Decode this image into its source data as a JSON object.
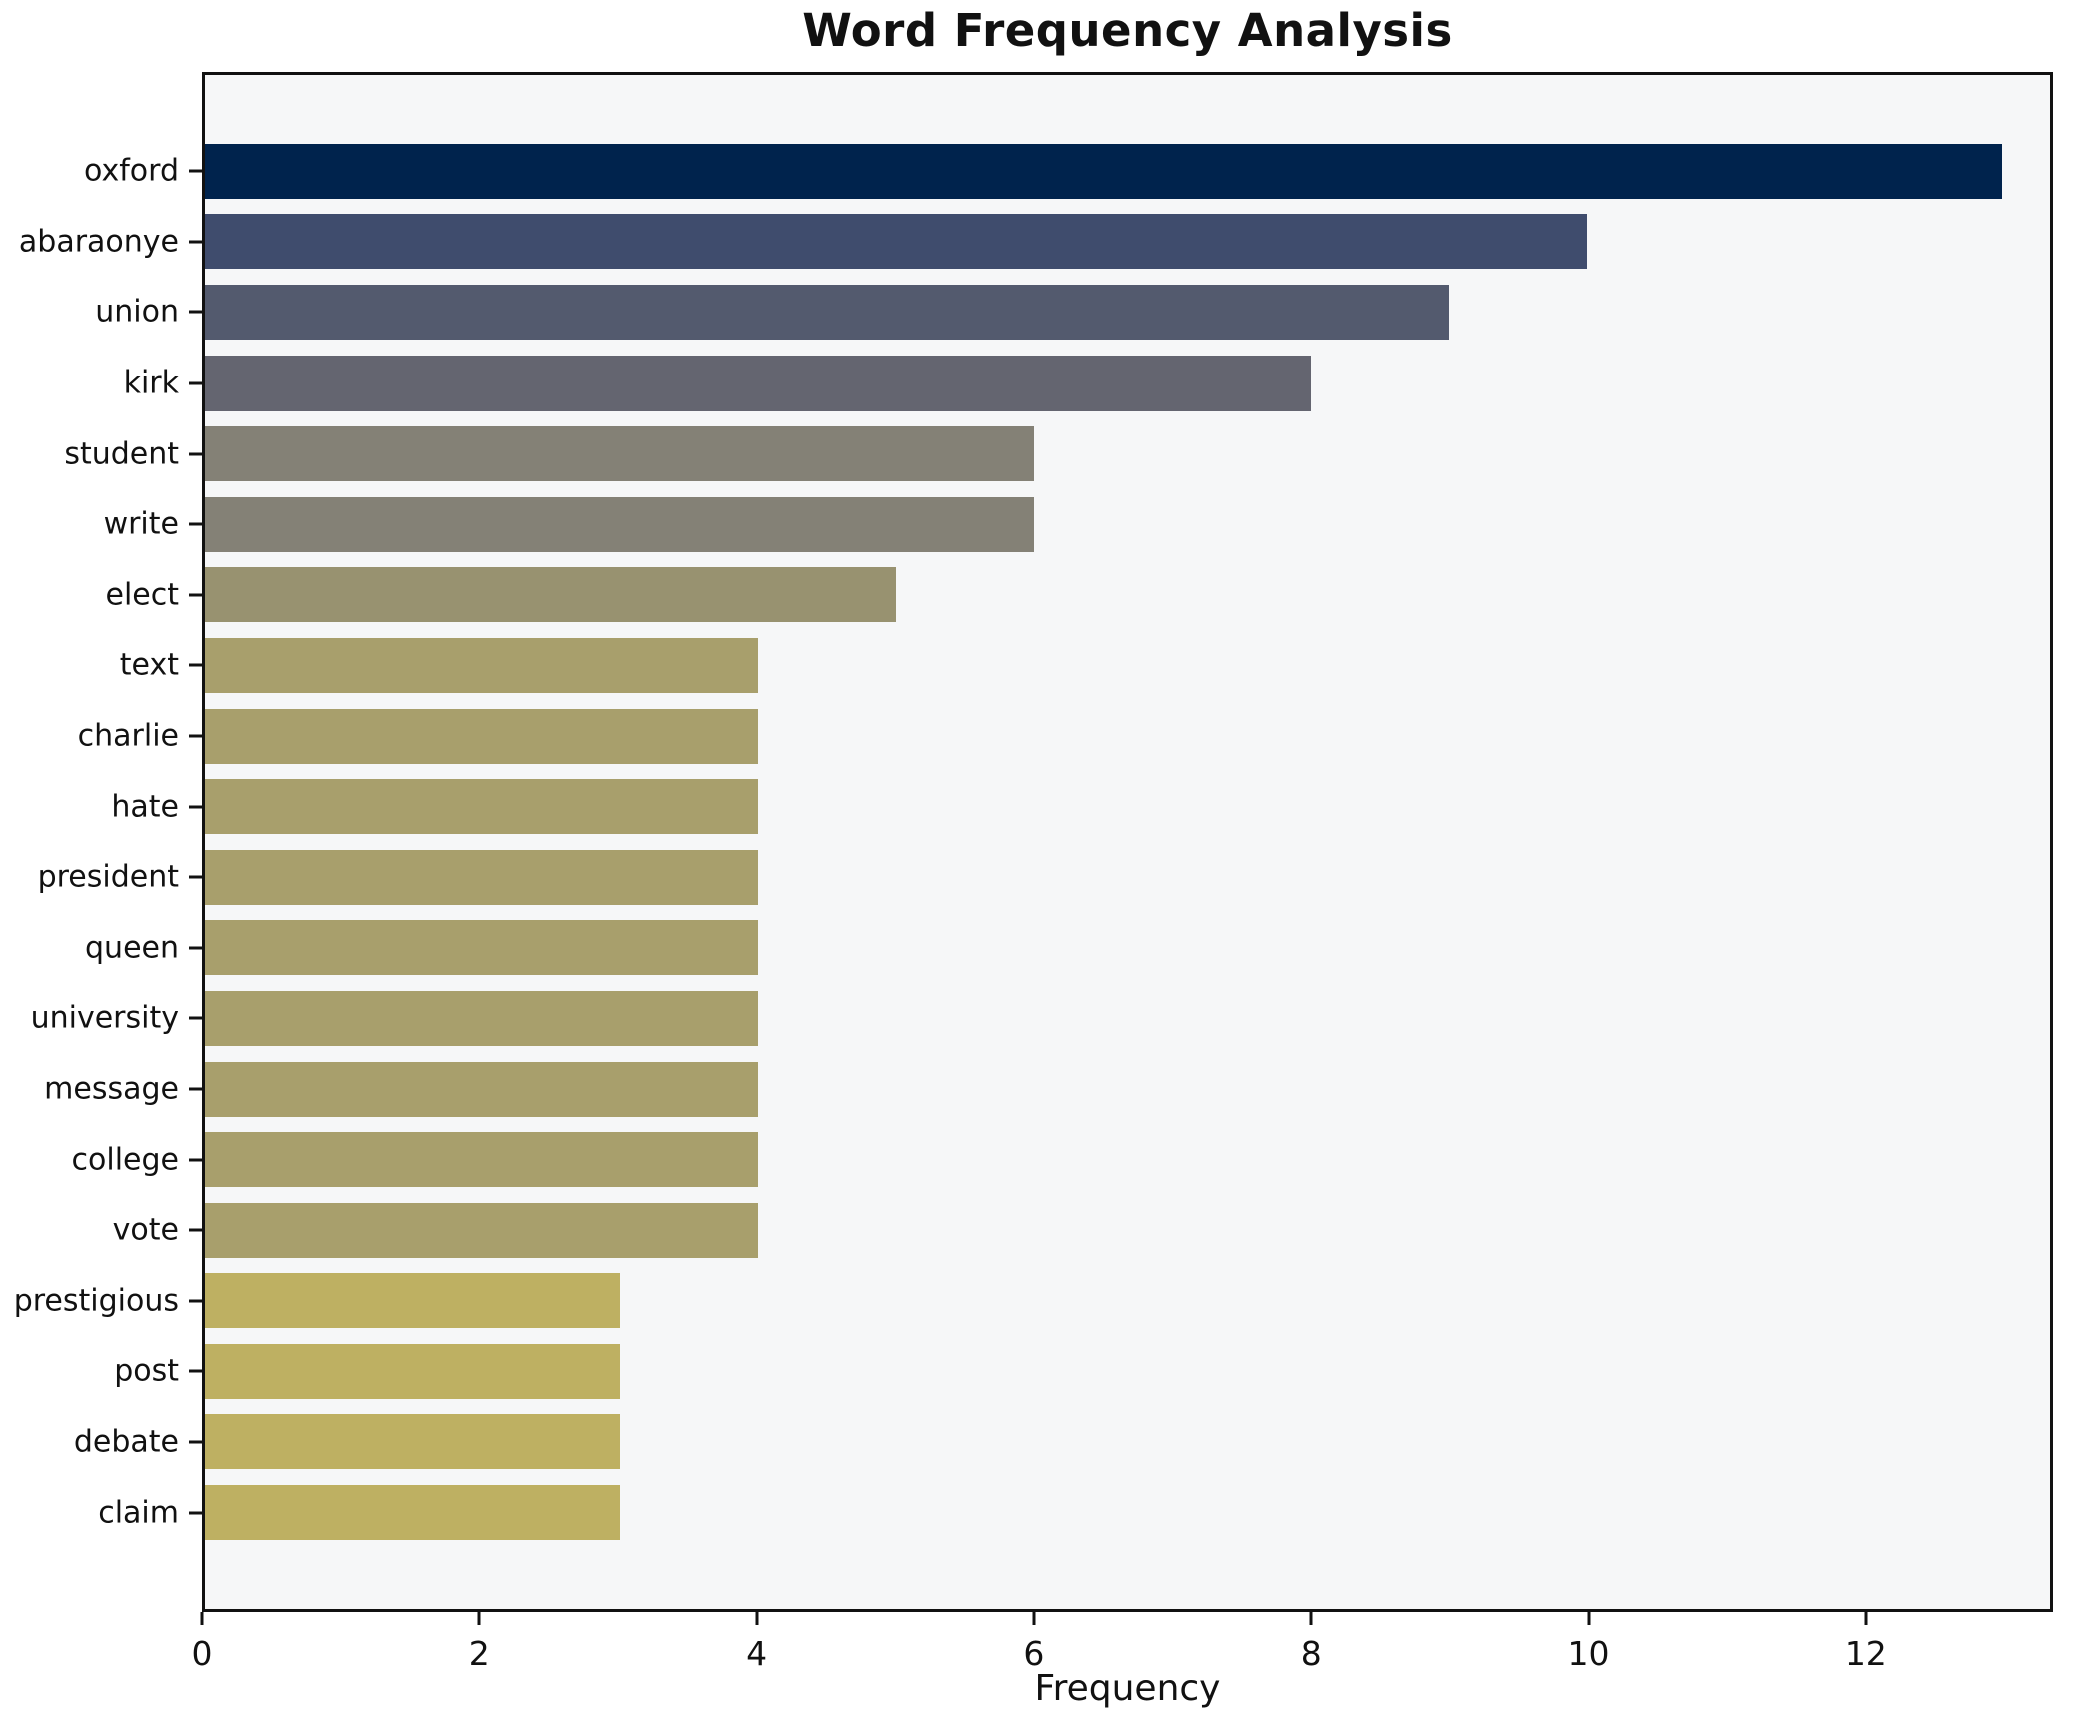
{
  "title": "Word Frequency Analysis",
  "xlabel": "Frequency",
  "chart_data": {
    "type": "bar",
    "orientation": "horizontal",
    "title": "Word Frequency Analysis",
    "xlabel": "Frequency",
    "ylabel": "",
    "grid": false,
    "legend": null,
    "xlim": [
      0,
      13.35
    ],
    "xticks": [
      0,
      2,
      4,
      6,
      8,
      10,
      12
    ],
    "categories": [
      "oxford",
      "abaraonye",
      "union",
      "kirk",
      "student",
      "write",
      "elect",
      "text",
      "charlie",
      "hate",
      "president",
      "queen",
      "university",
      "message",
      "college",
      "vote",
      "prestigious",
      "post",
      "debate",
      "claim"
    ],
    "values": [
      13,
      10,
      9,
      8,
      6,
      6,
      5,
      4,
      4,
      4,
      4,
      4,
      4,
      4,
      4,
      4,
      3,
      3,
      3,
      3
    ],
    "bar_colors": [
      "#00234d",
      "#3f4c6d",
      "#535a6e",
      "#646570",
      "#848176",
      "#848176",
      "#989270",
      "#a89f6c",
      "#a89f6c",
      "#a89f6c",
      "#a89f6c",
      "#a89f6c",
      "#a89f6c",
      "#a89f6c",
      "#a89f6c",
      "#a89f6c",
      "#beb062",
      "#beb062",
      "#beb062",
      "#beb062"
    ],
    "plot_background": "#f6f7f8",
    "figure_background": "#ffffff",
    "spine_color": "#111111",
    "text_color": "#111111"
  }
}
